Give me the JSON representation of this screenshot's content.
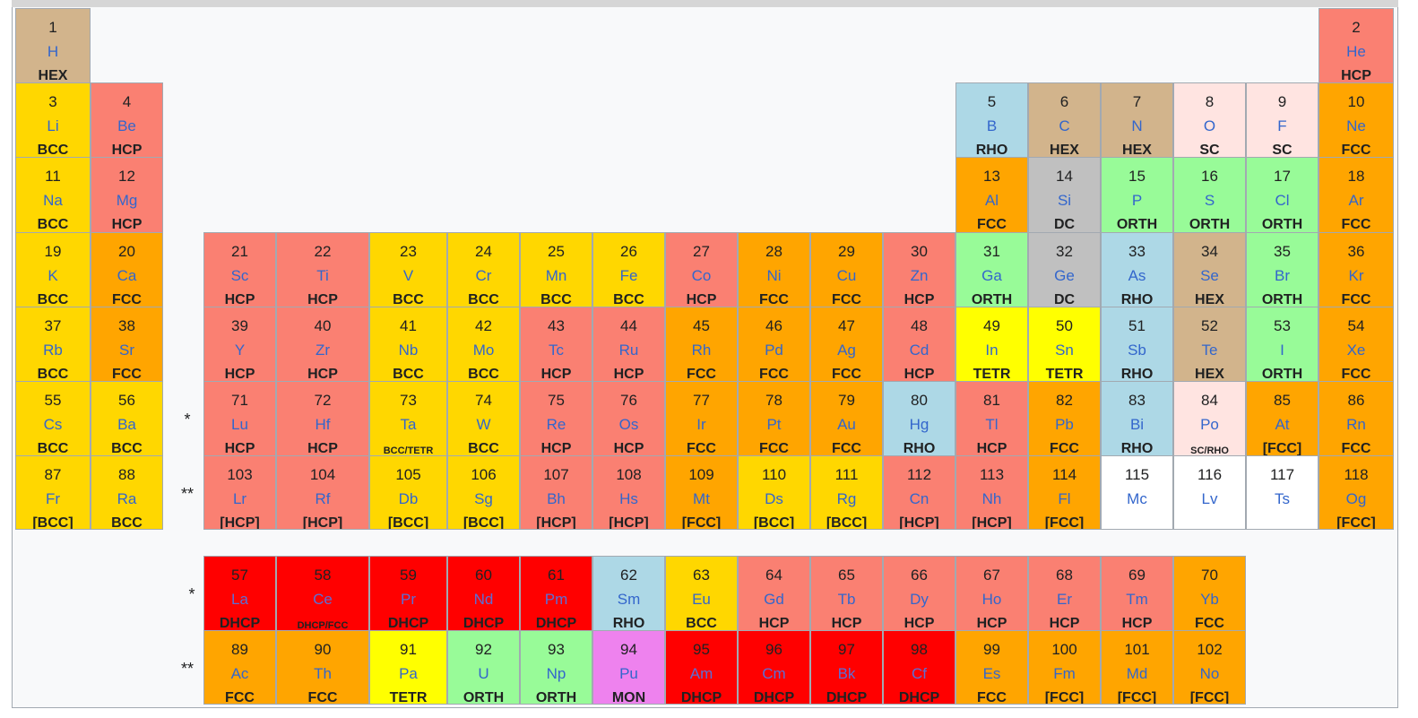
{
  "colors": {
    "BCC": "#ffd700",
    "HCP": "#fa8072",
    "FCC": "#ffa500",
    "HEX": "#d2b48c",
    "RHO": "#add8e6",
    "SC": "#ffe4e1",
    "DC": "#c0c0c0",
    "ORTH": "#98fb98",
    "TETR": "#ffff00",
    "MON": "#ee82ee",
    "DHCP": "#ff0000",
    "NONE": "#ffffff"
  },
  "markers": {
    "lanthanides": "*",
    "actinides": "**"
  },
  "elements": [
    {
      "n": "1",
      "s": "H",
      "st": "HEX",
      "c": "HEX",
      "r": 0,
      "col": 1
    },
    {
      "n": "2",
      "s": "He",
      "st": "HCP",
      "c": "HCP",
      "r": 0,
      "col": 18
    },
    {
      "n": "3",
      "s": "Li",
      "st": "BCC",
      "c": "BCC",
      "r": 1,
      "col": 1
    },
    {
      "n": "4",
      "s": "Be",
      "st": "HCP",
      "c": "HCP",
      "r": 1,
      "col": 2
    },
    {
      "n": "5",
      "s": "B",
      "st": "RHO",
      "c": "RHO",
      "r": 1,
      "col": 13
    },
    {
      "n": "6",
      "s": "C",
      "st": "HEX",
      "c": "HEX",
      "r": 1,
      "col": 14
    },
    {
      "n": "7",
      "s": "N",
      "st": "HEX",
      "c": "HEX",
      "r": 1,
      "col": 15
    },
    {
      "n": "8",
      "s": "O",
      "st": "SC",
      "c": "SC",
      "r": 1,
      "col": 16
    },
    {
      "n": "9",
      "s": "F",
      "st": "SC",
      "c": "SC",
      "r": 1,
      "col": 17
    },
    {
      "n": "10",
      "s": "Ne",
      "st": "FCC",
      "c": "FCC",
      "r": 1,
      "col": 18
    },
    {
      "n": "11",
      "s": "Na",
      "st": "BCC",
      "c": "BCC",
      "r": 2,
      "col": 1
    },
    {
      "n": "12",
      "s": "Mg",
      "st": "HCP",
      "c": "HCP",
      "r": 2,
      "col": 2
    },
    {
      "n": "13",
      "s": "Al",
      "st": "FCC",
      "c": "FCC",
      "r": 2,
      "col": 13
    },
    {
      "n": "14",
      "s": "Si",
      "st": "DC",
      "c": "DC",
      "r": 2,
      "col": 14
    },
    {
      "n": "15",
      "s": "P",
      "st": "ORTH",
      "c": "ORTH",
      "r": 2,
      "col": 15
    },
    {
      "n": "16",
      "s": "S",
      "st": "ORTH",
      "c": "ORTH",
      "r": 2,
      "col": 16
    },
    {
      "n": "17",
      "s": "Cl",
      "st": "ORTH",
      "c": "ORTH",
      "r": 2,
      "col": 17
    },
    {
      "n": "18",
      "s": "Ar",
      "st": "FCC",
      "c": "FCC",
      "r": 2,
      "col": 18
    },
    {
      "n": "19",
      "s": "K",
      "st": "BCC",
      "c": "BCC",
      "r": 3,
      "col": 1
    },
    {
      "n": "20",
      "s": "Ca",
      "st": "FCC",
      "c": "FCC",
      "r": 3,
      "col": 2
    },
    {
      "n": "21",
      "s": "Sc",
      "st": "HCP",
      "c": "HCP",
      "r": 3,
      "col": 3
    },
    {
      "n": "22",
      "s": "Ti",
      "st": "HCP",
      "c": "HCP",
      "r": 3,
      "col": 4
    },
    {
      "n": "23",
      "s": "V",
      "st": "BCC",
      "c": "BCC",
      "r": 3,
      "col": 5
    },
    {
      "n": "24",
      "s": "Cr",
      "st": "BCC",
      "c": "BCC",
      "r": 3,
      "col": 6
    },
    {
      "n": "25",
      "s": "Mn",
      "st": "BCC",
      "c": "BCC",
      "r": 3,
      "col": 7
    },
    {
      "n": "26",
      "s": "Fe",
      "st": "BCC",
      "c": "BCC",
      "r": 3,
      "col": 8
    },
    {
      "n": "27",
      "s": "Co",
      "st": "HCP",
      "c": "HCP",
      "r": 3,
      "col": 9
    },
    {
      "n": "28",
      "s": "Ni",
      "st": "FCC",
      "c": "FCC",
      "r": 3,
      "col": 10
    },
    {
      "n": "29",
      "s": "Cu",
      "st": "FCC",
      "c": "FCC",
      "r": 3,
      "col": 11
    },
    {
      "n": "30",
      "s": "Zn",
      "st": "HCP",
      "c": "HCP",
      "r": 3,
      "col": 12
    },
    {
      "n": "31",
      "s": "Ga",
      "st": "ORTH",
      "c": "ORTH",
      "r": 3,
      "col": 13
    },
    {
      "n": "32",
      "s": "Ge",
      "st": "DC",
      "c": "DC",
      "r": 3,
      "col": 14
    },
    {
      "n": "33",
      "s": "As",
      "st": "RHO",
      "c": "RHO",
      "r": 3,
      "col": 15
    },
    {
      "n": "34",
      "s": "Se",
      "st": "HEX",
      "c": "HEX",
      "r": 3,
      "col": 16
    },
    {
      "n": "35",
      "s": "Br",
      "st": "ORTH",
      "c": "ORTH",
      "r": 3,
      "col": 17
    },
    {
      "n": "36",
      "s": "Kr",
      "st": "FCC",
      "c": "FCC",
      "r": 3,
      "col": 18
    },
    {
      "n": "37",
      "s": "Rb",
      "st": "BCC",
      "c": "BCC",
      "r": 4,
      "col": 1
    },
    {
      "n": "38",
      "s": "Sr",
      "st": "FCC",
      "c": "FCC",
      "r": 4,
      "col": 2
    },
    {
      "n": "39",
      "s": "Y",
      "st": "HCP",
      "c": "HCP",
      "r": 4,
      "col": 3
    },
    {
      "n": "40",
      "s": "Zr",
      "st": "HCP",
      "c": "HCP",
      "r": 4,
      "col": 4
    },
    {
      "n": "41",
      "s": "Nb",
      "st": "BCC",
      "c": "BCC",
      "r": 4,
      "col": 5
    },
    {
      "n": "42",
      "s": "Mo",
      "st": "BCC",
      "c": "BCC",
      "r": 4,
      "col": 6
    },
    {
      "n": "43",
      "s": "Tc",
      "st": "HCP",
      "c": "HCP",
      "r": 4,
      "col": 7
    },
    {
      "n": "44",
      "s": "Ru",
      "st": "HCP",
      "c": "HCP",
      "r": 4,
      "col": 8
    },
    {
      "n": "45",
      "s": "Rh",
      "st": "FCC",
      "c": "FCC",
      "r": 4,
      "col": 9
    },
    {
      "n": "46",
      "s": "Pd",
      "st": "FCC",
      "c": "FCC",
      "r": 4,
      "col": 10
    },
    {
      "n": "47",
      "s": "Ag",
      "st": "FCC",
      "c": "FCC",
      "r": 4,
      "col": 11
    },
    {
      "n": "48",
      "s": "Cd",
      "st": "HCP",
      "c": "HCP",
      "r": 4,
      "col": 12
    },
    {
      "n": "49",
      "s": "In",
      "st": "TETR",
      "c": "TETR",
      "r": 4,
      "col": 13
    },
    {
      "n": "50",
      "s": "Sn",
      "st": "TETR",
      "c": "TETR",
      "r": 4,
      "col": 14
    },
    {
      "n": "51",
      "s": "Sb",
      "st": "RHO",
      "c": "RHO",
      "r": 4,
      "col": 15
    },
    {
      "n": "52",
      "s": "Te",
      "st": "HEX",
      "c": "HEX",
      "r": 4,
      "col": 16
    },
    {
      "n": "53",
      "s": "I",
      "st": "ORTH",
      "c": "ORTH",
      "r": 4,
      "col": 17
    },
    {
      "n": "54",
      "s": "Xe",
      "st": "FCC",
      "c": "FCC",
      "r": 4,
      "col": 18
    },
    {
      "n": "55",
      "s": "Cs",
      "st": "BCC",
      "c": "BCC",
      "r": 5,
      "col": 1
    },
    {
      "n": "56",
      "s": "Ba",
      "st": "BCC",
      "c": "BCC",
      "r": 5,
      "col": 2
    },
    {
      "n": "71",
      "s": "Lu",
      "st": "HCP",
      "c": "HCP",
      "r": 5,
      "col": 3
    },
    {
      "n": "72",
      "s": "Hf",
      "st": "HCP",
      "c": "HCP",
      "r": 5,
      "col": 4
    },
    {
      "n": "73",
      "s": "Ta",
      "st": "BCC/TETR",
      "c": "BCC",
      "r": 5,
      "col": 5,
      "small": true
    },
    {
      "n": "74",
      "s": "W",
      "st": "BCC",
      "c": "BCC",
      "r": 5,
      "col": 6
    },
    {
      "n": "75",
      "s": "Re",
      "st": "HCP",
      "c": "HCP",
      "r": 5,
      "col": 7
    },
    {
      "n": "76",
      "s": "Os",
      "st": "HCP",
      "c": "HCP",
      "r": 5,
      "col": 8
    },
    {
      "n": "77",
      "s": "Ir",
      "st": "FCC",
      "c": "FCC",
      "r": 5,
      "col": 9
    },
    {
      "n": "78",
      "s": "Pt",
      "st": "FCC",
      "c": "FCC",
      "r": 5,
      "col": 10
    },
    {
      "n": "79",
      "s": "Au",
      "st": "FCC",
      "c": "FCC",
      "r": 5,
      "col": 11
    },
    {
      "n": "80",
      "s": "Hg",
      "st": "RHO",
      "c": "RHO",
      "r": 5,
      "col": 12
    },
    {
      "n": "81",
      "s": "Tl",
      "st": "HCP",
      "c": "HCP",
      "r": 5,
      "col": 13
    },
    {
      "n": "82",
      "s": "Pb",
      "st": "FCC",
      "c": "FCC",
      "r": 5,
      "col": 14
    },
    {
      "n": "83",
      "s": "Bi",
      "st": "RHO",
      "c": "RHO",
      "r": 5,
      "col": 15
    },
    {
      "n": "84",
      "s": "Po",
      "st": "SC/RHO",
      "c": "SC",
      "r": 5,
      "col": 16,
      "small": true
    },
    {
      "n": "85",
      "s": "At",
      "st": "[FCC]",
      "c": "FCC",
      "r": 5,
      "col": 17
    },
    {
      "n": "86",
      "s": "Rn",
      "st": "FCC",
      "c": "FCC",
      "r": 5,
      "col": 18
    },
    {
      "n": "87",
      "s": "Fr",
      "st": "[BCC]",
      "c": "BCC",
      "r": 6,
      "col": 1
    },
    {
      "n": "88",
      "s": "Ra",
      "st": "BCC",
      "c": "BCC",
      "r": 6,
      "col": 2
    },
    {
      "n": "103",
      "s": "Lr",
      "st": "[HCP]",
      "c": "HCP",
      "r": 6,
      "col": 3
    },
    {
      "n": "104",
      "s": "Rf",
      "st": "[HCP]",
      "c": "HCP",
      "r": 6,
      "col": 4
    },
    {
      "n": "105",
      "s": "Db",
      "st": "[BCC]",
      "c": "BCC",
      "r": 6,
      "col": 5
    },
    {
      "n": "106",
      "s": "Sg",
      "st": "[BCC]",
      "c": "BCC",
      "r": 6,
      "col": 6
    },
    {
      "n": "107",
      "s": "Bh",
      "st": "[HCP]",
      "c": "HCP",
      "r": 6,
      "col": 7
    },
    {
      "n": "108",
      "s": "Hs",
      "st": "[HCP]",
      "c": "HCP",
      "r": 6,
      "col": 8
    },
    {
      "n": "109",
      "s": "Mt",
      "st": "[FCC]",
      "c": "FCC",
      "r": 6,
      "col": 9
    },
    {
      "n": "110",
      "s": "Ds",
      "st": "[BCC]",
      "c": "BCC",
      "r": 6,
      "col": 10
    },
    {
      "n": "111",
      "s": "Rg",
      "st": "[BCC]",
      "c": "BCC",
      "r": 6,
      "col": 11
    },
    {
      "n": "112",
      "s": "Cn",
      "st": "[HCP]",
      "c": "HCP",
      "r": 6,
      "col": 12
    },
    {
      "n": "113",
      "s": "Nh",
      "st": "[HCP]",
      "c": "HCP",
      "r": 6,
      "col": 13
    },
    {
      "n": "114",
      "s": "Fl",
      "st": "[FCC]",
      "c": "FCC",
      "r": 6,
      "col": 14
    },
    {
      "n": "115",
      "s": "Mc",
      "st": "",
      "c": "NONE",
      "r": 6,
      "col": 15
    },
    {
      "n": "116",
      "s": "Lv",
      "st": "",
      "c": "NONE",
      "r": 6,
      "col": 16
    },
    {
      "n": "117",
      "s": "Ts",
      "st": "",
      "c": "NONE",
      "r": 6,
      "col": 17
    },
    {
      "n": "118",
      "s": "Og",
      "st": "[FCC]",
      "c": "FCC",
      "r": 6,
      "col": 18
    },
    {
      "n": "57",
      "s": "La",
      "st": "DHCP",
      "c": "DHCP",
      "r": 7,
      "col": 3
    },
    {
      "n": "58",
      "s": "Ce",
      "st": "DHCP/FCC",
      "c": "DHCP",
      "r": 7,
      "col": 4,
      "small": true
    },
    {
      "n": "59",
      "s": "Pr",
      "st": "DHCP",
      "c": "DHCP",
      "r": 7,
      "col": 5
    },
    {
      "n": "60",
      "s": "Nd",
      "st": "DHCP",
      "c": "DHCP",
      "r": 7,
      "col": 6
    },
    {
      "n": "61",
      "s": "Pm",
      "st": "DHCP",
      "c": "DHCP",
      "r": 7,
      "col": 7
    },
    {
      "n": "62",
      "s": "Sm",
      "st": "RHO",
      "c": "RHO",
      "r": 7,
      "col": 8
    },
    {
      "n": "63",
      "s": "Eu",
      "st": "BCC",
      "c": "BCC",
      "r": 7,
      "col": 9
    },
    {
      "n": "64",
      "s": "Gd",
      "st": "HCP",
      "c": "HCP",
      "r": 7,
      "col": 10
    },
    {
      "n": "65",
      "s": "Tb",
      "st": "HCP",
      "c": "HCP",
      "r": 7,
      "col": 11
    },
    {
      "n": "66",
      "s": "Dy",
      "st": "HCP",
      "c": "HCP",
      "r": 7,
      "col": 12
    },
    {
      "n": "67",
      "s": "Ho",
      "st": "HCP",
      "c": "HCP",
      "r": 7,
      "col": 13
    },
    {
      "n": "68",
      "s": "Er",
      "st": "HCP",
      "c": "HCP",
      "r": 7,
      "col": 14
    },
    {
      "n": "69",
      "s": "Tm",
      "st": "HCP",
      "c": "HCP",
      "r": 7,
      "col": 15
    },
    {
      "n": "70",
      "s": "Yb",
      "st": "FCC",
      "c": "FCC",
      "r": 7,
      "col": 16
    },
    {
      "n": "89",
      "s": "Ac",
      "st": "FCC",
      "c": "FCC",
      "r": 8,
      "col": 3
    },
    {
      "n": "90",
      "s": "Th",
      "st": "FCC",
      "c": "FCC",
      "r": 8,
      "col": 4
    },
    {
      "n": "91",
      "s": "Pa",
      "st": "TETR",
      "c": "TETR",
      "r": 8,
      "col": 5
    },
    {
      "n": "92",
      "s": "U",
      "st": "ORTH",
      "c": "ORTH",
      "r": 8,
      "col": 6
    },
    {
      "n": "93",
      "s": "Np",
      "st": "ORTH",
      "c": "ORTH",
      "r": 8,
      "col": 7
    },
    {
      "n": "94",
      "s": "Pu",
      "st": "MON",
      "c": "MON",
      "r": 8,
      "col": 8
    },
    {
      "n": "95",
      "s": "Am",
      "st": "DHCP",
      "c": "DHCP",
      "r": 8,
      "col": 9
    },
    {
      "n": "96",
      "s": "Cm",
      "st": "DHCP",
      "c": "DHCP",
      "r": 8,
      "col": 10
    },
    {
      "n": "97",
      "s": "Bk",
      "st": "DHCP",
      "c": "DHCP",
      "r": 8,
      "col": 11
    },
    {
      "n": "98",
      "s": "Cf",
      "st": "DHCP",
      "c": "DHCP",
      "r": 8,
      "col": 12
    },
    {
      "n": "99",
      "s": "Es",
      "st": "FCC",
      "c": "FCC",
      "r": 8,
      "col": 13
    },
    {
      "n": "100",
      "s": "Fm",
      "st": "[FCC]",
      "c": "FCC",
      "r": 8,
      "col": 14
    },
    {
      "n": "101",
      "s": "Md",
      "st": "[FCC]",
      "c": "FCC",
      "r": 8,
      "col": 15
    },
    {
      "n": "102",
      "s": "No",
      "st": "[FCC]",
      "c": "FCC",
      "r": 8,
      "col": 16
    }
  ]
}
